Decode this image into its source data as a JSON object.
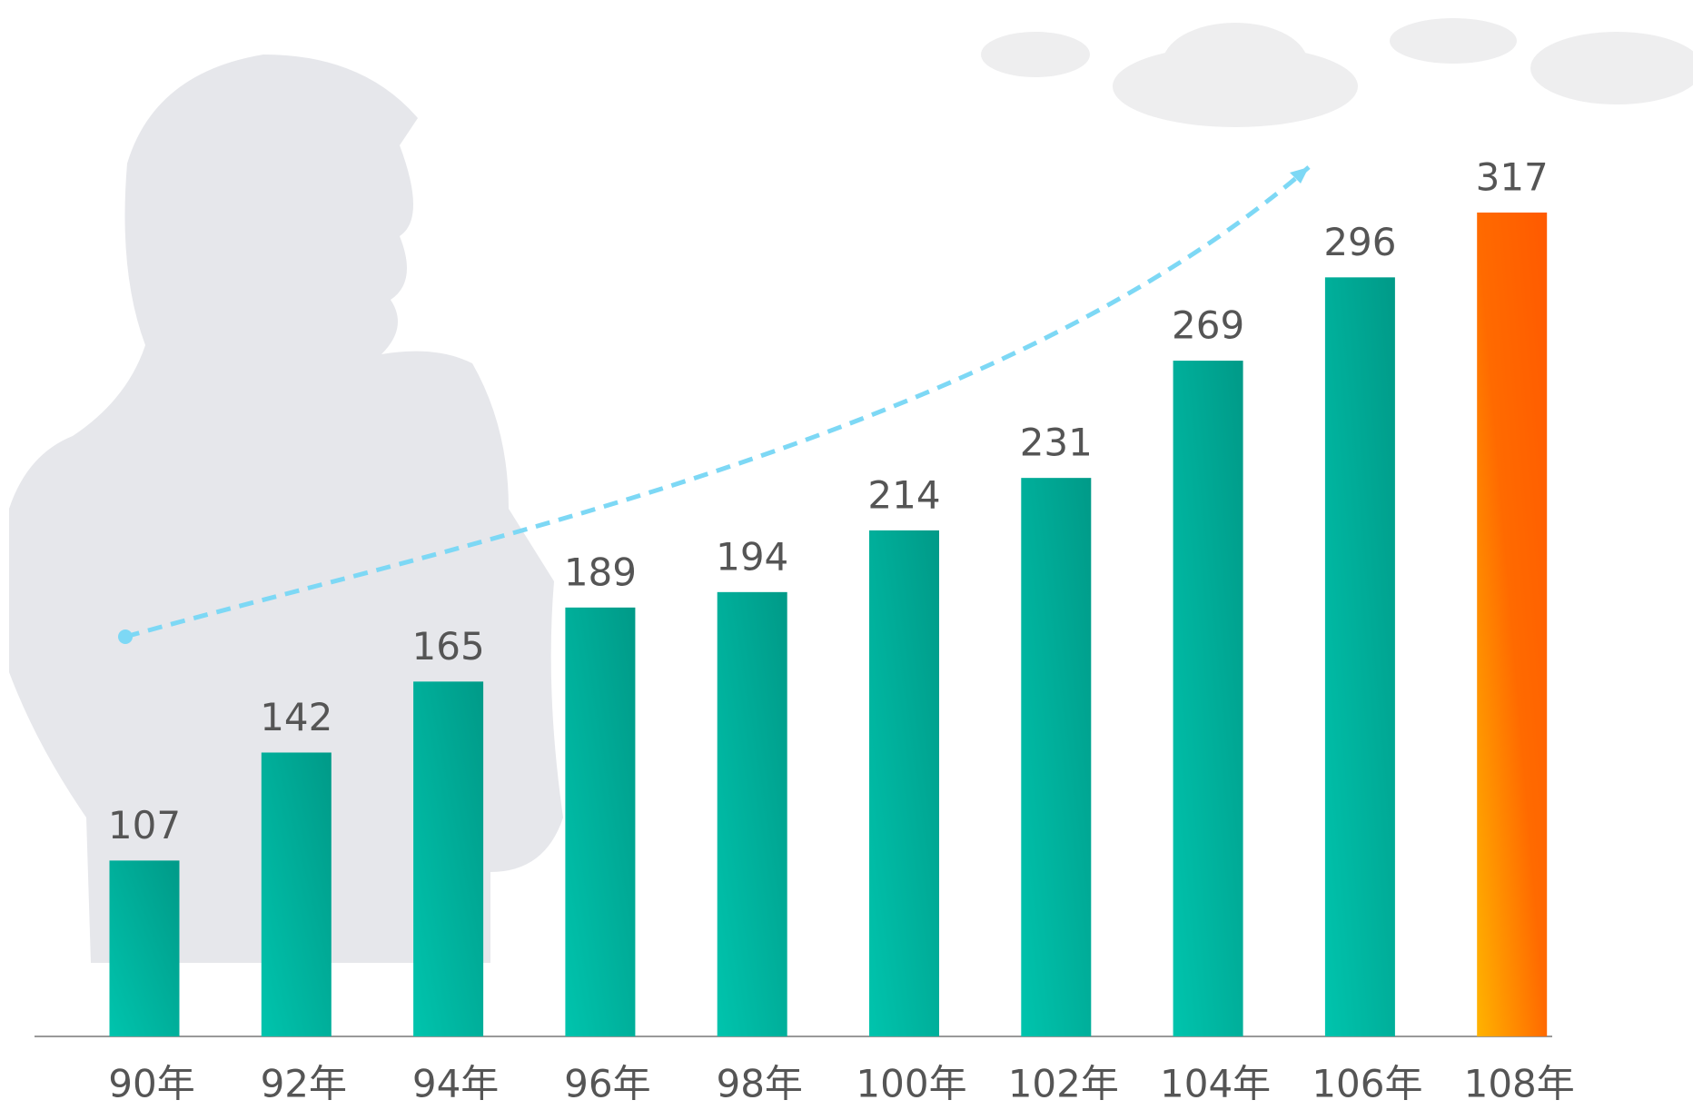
{
  "chart_data": {
    "type": "bar",
    "categories": [
      "90年",
      "92年",
      "94年",
      "96年",
      "98年",
      "100年",
      "102年",
      "104年",
      "106年",
      "108年"
    ],
    "values": [
      107,
      142,
      165,
      189,
      194,
      214,
      231,
      269,
      296,
      317
    ],
    "colors": [
      "#00a896",
      "#00a896",
      "#00a896",
      "#00a896",
      "#00a896",
      "#00a896",
      "#00a896",
      "#00a896",
      "#00a896",
      "#ff6a00"
    ],
    "ylim": [
      50,
      380
    ]
  }
}
